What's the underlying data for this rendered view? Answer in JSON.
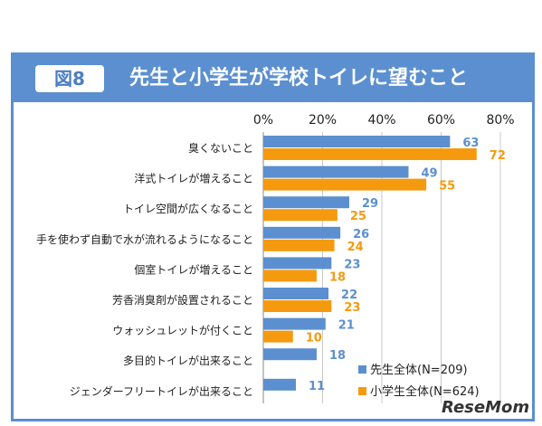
{
  "header": {
    "fig_label": "図8",
    "title": "先生と小学生が学校トイレに望むこと"
  },
  "watermark": "ReseMom",
  "colors": {
    "teachers": "#5b8fd0",
    "students": "#f59a0e",
    "frame": "#5b8fd0"
  },
  "chart_data": {
    "type": "bar",
    "orientation": "horizontal",
    "categories": [
      "臭くないこと",
      "洋式トイレが増えること",
      "トイレ空間が広くなること",
      "手を使わず自動で水が流れるようになること",
      "個室トイレが増えること",
      "芳香消臭剤が設置されること",
      "ウォッシュレットが付くこと",
      "多目的トイレが出来ること",
      "ジェンダーフリートイレが出来ること"
    ],
    "series": [
      {
        "name": "先生全体(N=209)",
        "values": [
          63,
          49,
          29,
          26,
          23,
          22,
          21,
          18,
          11
        ]
      },
      {
        "name": "小学生全体(N=624)",
        "values": [
          72,
          55,
          25,
          24,
          18,
          23,
          10,
          null,
          null
        ]
      }
    ],
    "xlim": [
      0,
      80
    ],
    "ticks": [
      "0%",
      "20%",
      "40%",
      "60%",
      "80%"
    ],
    "tick_values": [
      0,
      20,
      40,
      60,
      80
    ],
    "grid": true,
    "legend": "bottom-right"
  }
}
